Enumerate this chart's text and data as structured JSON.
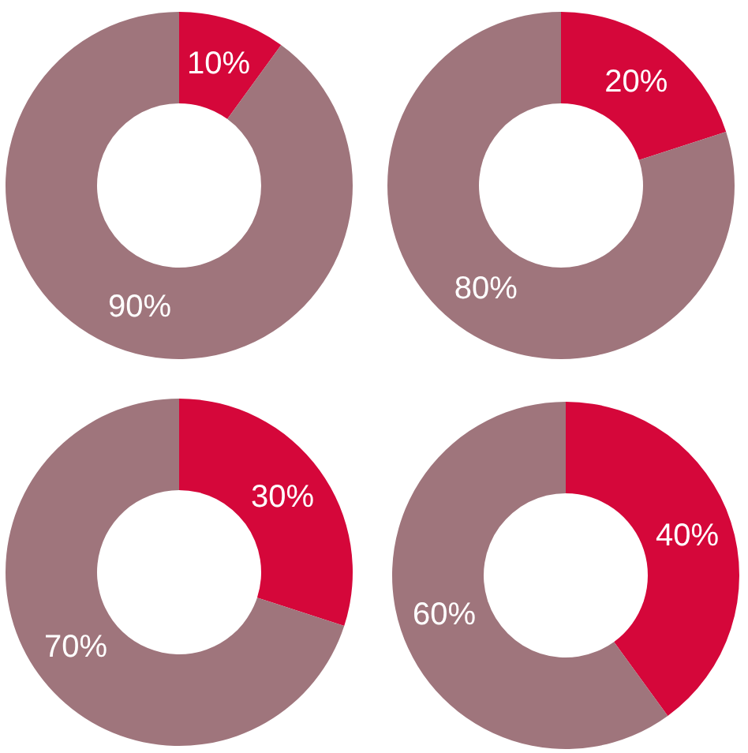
{
  "chart_data": [
    {
      "type": "donut",
      "categories": [
        null,
        null
      ],
      "values": [
        10,
        90
      ],
      "colors": [
        "#d5073a",
        "#9f757c"
      ],
      "value_labels": [
        "10%",
        "90%"
      ]
    },
    {
      "type": "donut",
      "categories": [
        null,
        null
      ],
      "values": [
        20,
        80
      ],
      "colors": [
        "#d5073a",
        "#9f757c"
      ],
      "value_labels": [
        "20%",
        "80%"
      ]
    },
    {
      "type": "donut",
      "categories": [
        null,
        null
      ],
      "values": [
        30,
        70
      ],
      "colors": [
        "#d5073a",
        "#9f757c"
      ],
      "value_labels": [
        "30%",
        "70%"
      ]
    },
    {
      "type": "donut",
      "categories": [
        null,
        null
      ],
      "values": [
        40,
        60
      ],
      "colors": [
        "#d5073a",
        "#9f757c"
      ],
      "value_labels": [
        "40%",
        "60%"
      ]
    }
  ]
}
